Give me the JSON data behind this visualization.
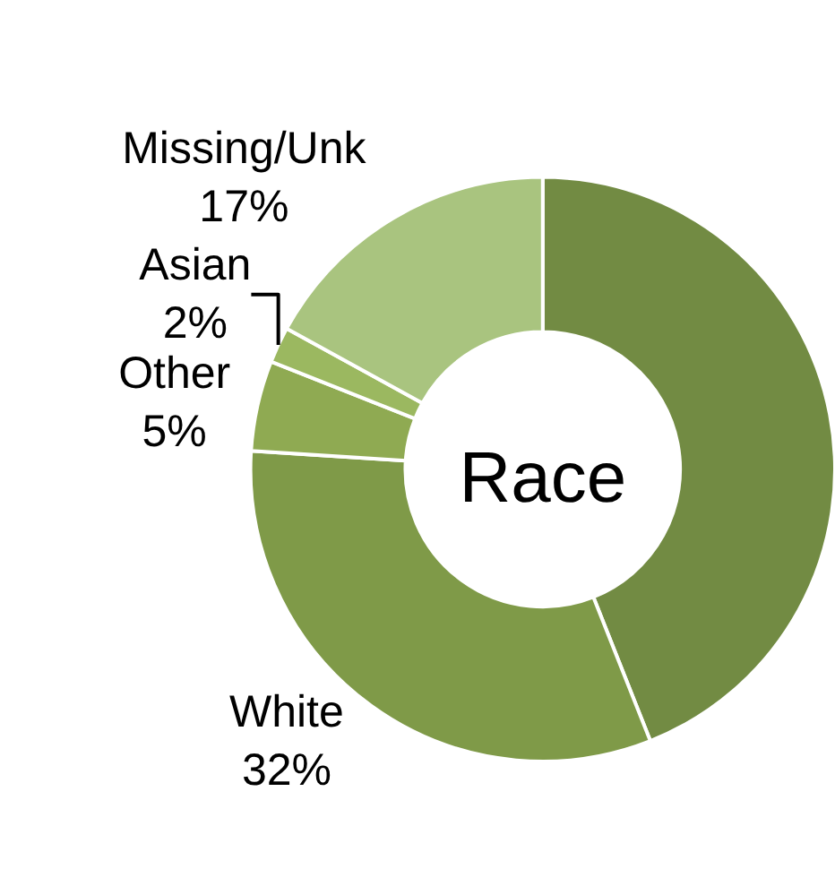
{
  "chart_data": {
    "type": "donut",
    "title": "Race",
    "categories": [
      null,
      "White",
      "Other",
      "Asian",
      "Missing/Unk"
    ],
    "values": [
      44,
      32,
      5,
      2,
      17
    ],
    "value_labels": [
      null,
      "32%",
      "5%",
      "2%",
      "17%"
    ],
    "colors": [
      "#728b43",
      "#7f9a48",
      "#8faa52",
      "#9bb860",
      "#a9c47f"
    ],
    "legend": false
  }
}
